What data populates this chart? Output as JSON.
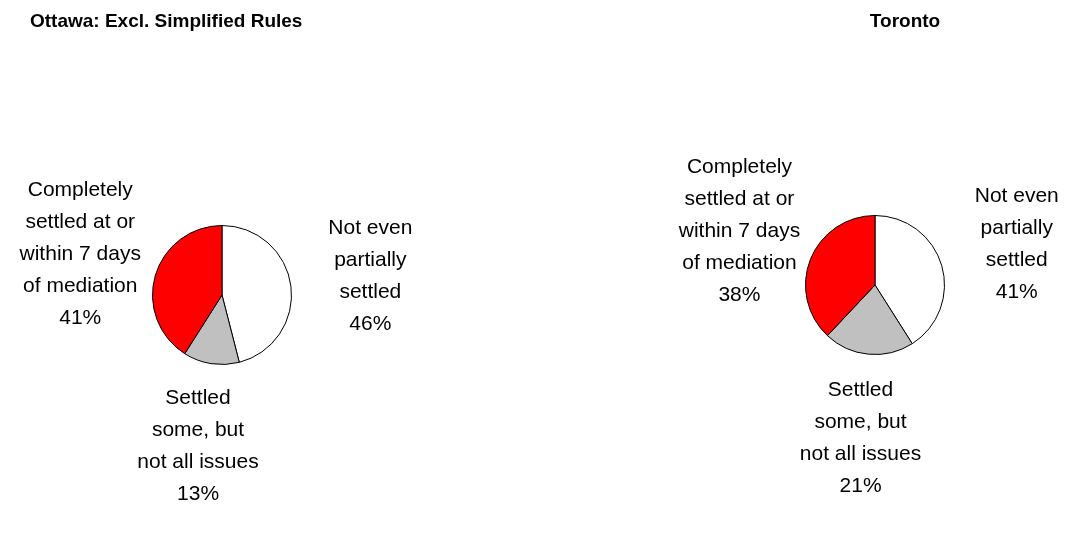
{
  "chart_data": [
    {
      "type": "pie",
      "title": "Ottawa: Excl. Simplified Rules",
      "categories": [
        "Not even partially settled",
        "Settled some, but not all issues",
        "Completely settled at or within 7 days of mediation"
      ],
      "values": [
        46,
        13,
        41
      ],
      "colors": [
        "#ffffff",
        "#c0c0c0",
        "#ff0000"
      ],
      "value_labels": [
        "46%",
        "13%",
        "41%"
      ]
    },
    {
      "type": "pie",
      "title": "Toronto",
      "categories": [
        "Not even partially settled",
        "Settled some, but not all issues",
        "Completely settled at or within 7 days of mediation"
      ],
      "values": [
        41,
        21,
        38
      ],
      "colors": [
        "#ffffff",
        "#c0c0c0",
        "#ff0000"
      ],
      "value_labels": [
        "41%",
        "21%",
        "38%"
      ]
    }
  ]
}
